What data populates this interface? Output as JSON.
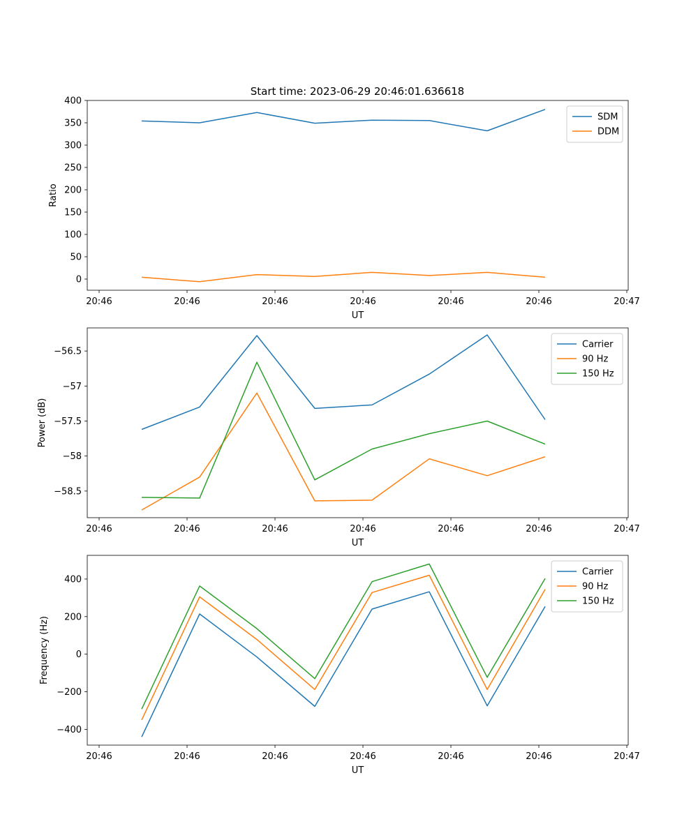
{
  "figure": {
    "title": "Start time: 2023-06-29 20:46:01.636618"
  },
  "colors": {
    "blue": "#1f77b4",
    "orange": "#ff7f0e",
    "green": "#2ca02c"
  },
  "chart_data": [
    {
      "type": "line",
      "title": "Start time: 2023-06-29 20:46:01.636618",
      "xlabel": "UT",
      "ylabel": "Ratio",
      "x_tick_labels": [
        "20:46",
        "20:46",
        "20:46",
        "20:46",
        "20:46",
        "20:46",
        "20:47"
      ],
      "ylim": [
        -25,
        400
      ],
      "y_ticks": [
        0,
        50,
        100,
        150,
        200,
        250,
        300,
        350,
        400
      ],
      "legend_position": "top-right",
      "series": [
        {
          "name": "SDM",
          "color": "#1f77b4",
          "values": [
            354,
            350,
            373,
            349,
            356,
            355,
            332,
            380
          ]
        },
        {
          "name": "DDM",
          "color": "#ff7f0e",
          "values": [
            4,
            -6,
            10,
            6,
            15,
            8,
            15,
            4
          ]
        }
      ]
    },
    {
      "type": "line",
      "title": "",
      "xlabel": "UT",
      "ylabel": "Power (dB)",
      "x_tick_labels": [
        "20:46",
        "20:46",
        "20:46",
        "20:46",
        "20:46",
        "20:46",
        "20:47"
      ],
      "ylim": [
        -58.88,
        -56.17
      ],
      "y_ticks": [
        -58.5,
        -58.0,
        -57.5,
        -57.0,
        -56.5
      ],
      "legend_position": "top-right",
      "series": [
        {
          "name": "Carrier",
          "color": "#1f77b4",
          "values": [
            -57.62,
            -57.3,
            -56.28,
            -57.32,
            -57.27,
            -56.83,
            -56.27,
            -57.48
          ]
        },
        {
          "name": "90 Hz",
          "color": "#ff7f0e",
          "values": [
            -58.77,
            -58.3,
            -57.1,
            -58.64,
            -58.63,
            -58.04,
            -58.28,
            -58.01
          ]
        },
        {
          "name": "150 Hz",
          "color": "#2ca02c",
          "values": [
            -58.59,
            -58.6,
            -56.66,
            -58.34,
            -57.9,
            -57.68,
            -57.5,
            -57.83
          ]
        }
      ]
    },
    {
      "type": "line",
      "title": "",
      "xlabel": "UT",
      "ylabel": "Frequency (Hz)",
      "x_tick_labels": [
        "20:46",
        "20:46",
        "20:46",
        "20:46",
        "20:46",
        "20:46",
        "20:47"
      ],
      "ylim": [
        -484,
        526
      ],
      "y_ticks": [
        -400,
        -200,
        0,
        200,
        400
      ],
      "legend_position": "top-right",
      "series": [
        {
          "name": "Carrier",
          "color": "#1f77b4",
          "values": [
            -440,
            214,
            -15,
            -278,
            240,
            332,
            -275,
            254
          ]
        },
        {
          "name": "90 Hz",
          "color": "#ff7f0e",
          "values": [
            -350,
            305,
            78,
            -188,
            328,
            420,
            -188,
            345
          ]
        },
        {
          "name": "150 Hz",
          "color": "#2ca02c",
          "values": [
            -292,
            363,
            136,
            -130,
            386,
            480,
            -123,
            403
          ]
        }
      ]
    }
  ]
}
